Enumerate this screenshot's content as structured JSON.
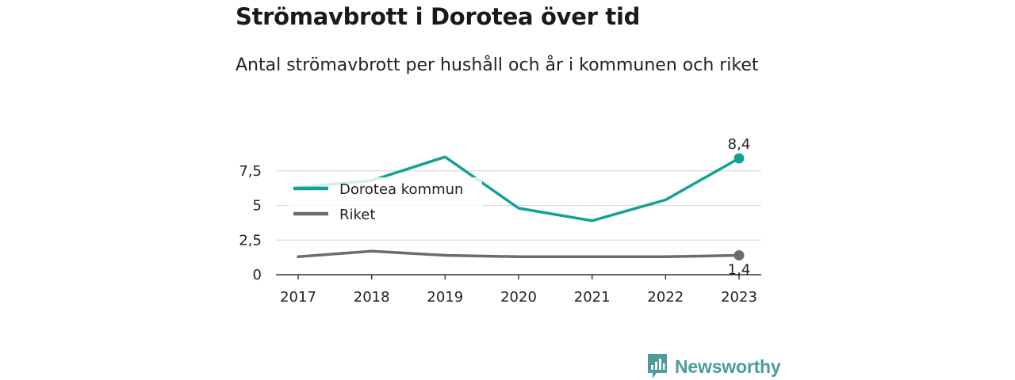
{
  "title": "Strömavbrott i Dorotea över tid",
  "subtitle": "Antal strömavbrott per hushåll och år i kommunen och riket",
  "brand": {
    "name": "Newsworthy",
    "icon": "newsworthy-logo-icon"
  },
  "chart_data": {
    "type": "line",
    "title": "",
    "xlabel": "",
    "ylabel": "",
    "x": [
      "2017",
      "2018",
      "2019",
      "2020",
      "2021",
      "2022",
      "2023"
    ],
    "ylim": [
      0,
      9.2
    ],
    "yticks": [
      0,
      2.5,
      5,
      7.5
    ],
    "ytick_labels": [
      "0",
      "2,5",
      "5",
      "7,5"
    ],
    "grid": true,
    "legend_position": "left",
    "series": [
      {
        "name": "Dorotea kommun",
        "color": "#12a295",
        "values": [
          6.3,
          6.8,
          8.5,
          4.8,
          3.9,
          5.4,
          8.4
        ],
        "end_label": "8,4"
      },
      {
        "name": "Riket",
        "color": "#6c6b74",
        "values": [
          1.3,
          1.7,
          1.4,
          1.3,
          1.3,
          1.3,
          1.4
        ],
        "end_label": "1,4"
      }
    ]
  }
}
